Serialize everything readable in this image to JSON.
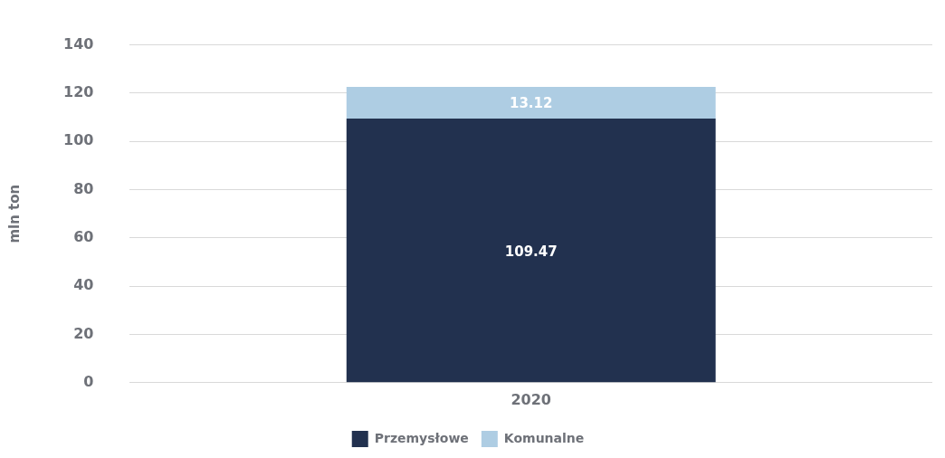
{
  "chart_data": {
    "type": "bar",
    "stacked": true,
    "ylabel": "mln ton",
    "categories": [
      "2020"
    ],
    "series": [
      {
        "name": "Przemysłowe",
        "color": "#22314f",
        "values": [
          109.47
        ]
      },
      {
        "name": "Komunalne",
        "color": "#aecde3",
        "values": [
          13.12
        ]
      }
    ],
    "ylim": [
      0,
      140
    ],
    "yticks": [
      0,
      20,
      40,
      60,
      80,
      100,
      120,
      140
    ],
    "grid": "y",
    "legend": "bottom",
    "data_labels": true
  }
}
